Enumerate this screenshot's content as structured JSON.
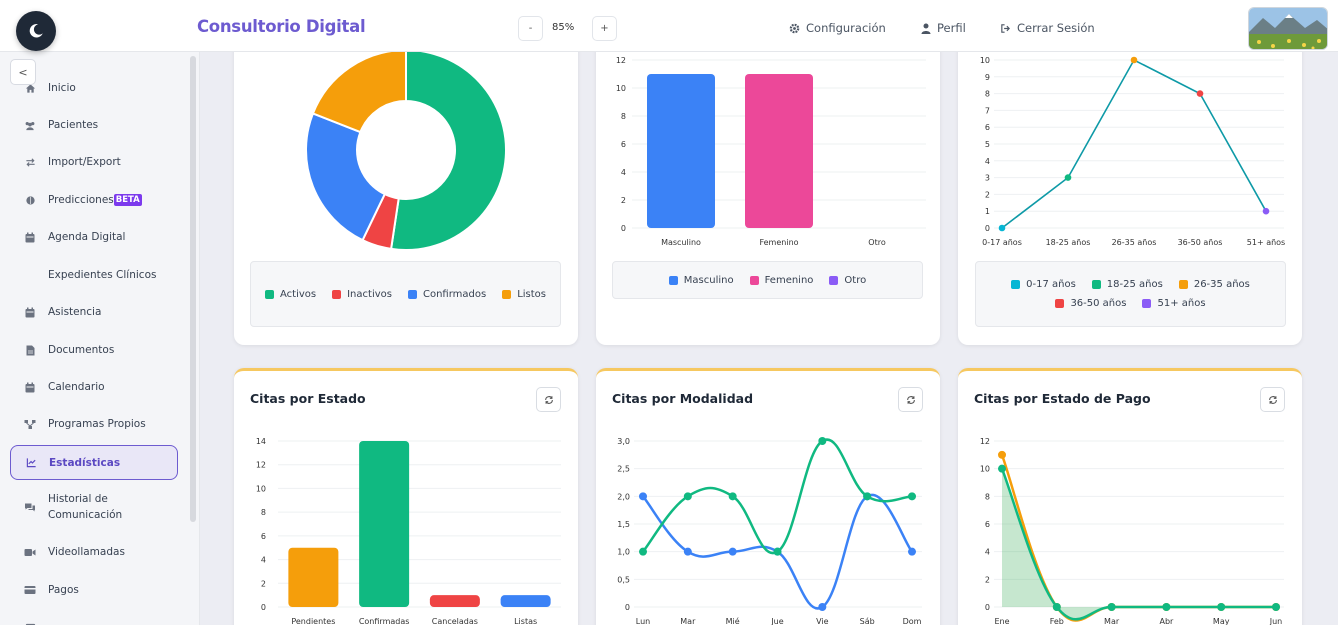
{
  "app": {
    "title": "Consultorio Digital",
    "zoom": {
      "minus": "-",
      "value": "85%",
      "plus": "+"
    },
    "nav": {
      "config": "Configuración",
      "profile": "Perfil",
      "logout": "Cerrar Sesión"
    },
    "collapse": "<"
  },
  "sidebar": {
    "items": [
      {
        "label": "Inicio",
        "icon": "home-icon"
      },
      {
        "label": "Pacientes",
        "icon": "users-icon"
      },
      {
        "label": "Import/Export",
        "icon": "exchange-icon"
      },
      {
        "label": "Predicciones",
        "icon": "brain-icon",
        "badge": "BETA"
      },
      {
        "label": "Agenda Digital",
        "icon": "calendar-icon"
      },
      {
        "label": "Expedientes Clínicos",
        "icon": ""
      },
      {
        "label": "Asistencia",
        "icon": "calendar-check-icon"
      },
      {
        "label": "Documentos",
        "icon": "file-icon"
      },
      {
        "label": "Calendario",
        "icon": "calendar-icon"
      },
      {
        "label": "Programas Propios",
        "icon": "sitemap-icon"
      },
      {
        "label": "Estadísticas",
        "icon": "chart-line-icon",
        "active": true
      },
      {
        "label": "Historial de Comunicación",
        "icon": "comments-icon"
      },
      {
        "label": "Videollamadas",
        "icon": "video-icon"
      },
      {
        "label": "Pagos",
        "icon": "credit-card-icon"
      }
    ]
  },
  "colors": {
    "brand": "#6d5bd0",
    "green": "#10b981",
    "red": "#ef4444",
    "blue": "#3b82f6",
    "orange": "#f59e0b",
    "pink": "#ec4899",
    "purple": "#8b5cf6",
    "teal": "#0891b2",
    "cyan": "#06b6d4"
  },
  "cards": {
    "c4": {
      "title": "Citas por Estado"
    },
    "c5": {
      "title": "Citas por Modalidad"
    },
    "c6": {
      "title": "Citas por Estado de Pago"
    }
  },
  "chart_data": [
    {
      "type": "pie",
      "categories": [
        "Activos",
        "Inactivos",
        "Confirmados",
        "Listos"
      ],
      "values": [
        11,
        1,
        5,
        4
      ],
      "colors": [
        "#10b981",
        "#ef4444",
        "#3b82f6",
        "#f59e0b"
      ],
      "legend": "bottom"
    },
    {
      "type": "bar",
      "categories": [
        "Masculino",
        "Femenino",
        "Otro"
      ],
      "values": [
        11,
        11,
        0
      ],
      "colors": [
        "#3b82f6",
        "#ec4899",
        "#8b5cf6"
      ],
      "ylim": [
        0,
        12
      ],
      "yticks": [
        0,
        2,
        4,
        6,
        8,
        10,
        12
      ],
      "legend": "bottom"
    },
    {
      "type": "line",
      "categories": [
        "0-17 años",
        "18-25 años",
        "26-35 años",
        "36-50 años",
        "51+ años"
      ],
      "values": [
        0,
        3,
        10,
        8,
        1
      ],
      "colors": [
        "#06b6d4",
        "#10b981",
        "#f59e0b",
        "#ef4444",
        "#8b5cf6"
      ],
      "ylim": [
        0,
        10
      ],
      "yticks": [
        0,
        1,
        2,
        3,
        4,
        5,
        6,
        7,
        8,
        9,
        10
      ],
      "legend": "bottom"
    },
    {
      "type": "bar",
      "title": "Citas por Estado",
      "categories": [
        "Pendientes",
        "Confirmadas",
        "Canceladas",
        "Listas"
      ],
      "values": [
        5,
        14,
        1,
        1
      ],
      "colors": [
        "#f59e0b",
        "#10b981",
        "#ef4444",
        "#3b82f6"
      ],
      "ylim": [
        0,
        14
      ],
      "yticks": [
        0,
        2,
        4,
        6,
        8,
        10,
        12,
        14
      ]
    },
    {
      "type": "line",
      "title": "Citas por Modalidad",
      "categories": [
        "Lun",
        "Mar",
        "Mié",
        "Jue",
        "Vie",
        "Sáb",
        "Dom"
      ],
      "series": [
        {
          "values": [
            2,
            1,
            1,
            1,
            0,
            2,
            1
          ],
          "color": "#3b82f6"
        },
        {
          "values": [
            1,
            2,
            2,
            1,
            3,
            2,
            2
          ],
          "color": "#10b981"
        }
      ],
      "ylim": [
        0,
        3
      ],
      "yticks": [
        "0",
        "0,5",
        "1,0",
        "1,5",
        "2,0",
        "2,5",
        "3,0"
      ]
    },
    {
      "type": "area",
      "title": "Citas por Estado de Pago",
      "categories": [
        "Ene",
        "Feb",
        "Mar",
        "Abr",
        "May",
        "Jun"
      ],
      "series": [
        {
          "values": [
            11,
            0,
            0,
            0,
            0,
            0
          ],
          "color": "#f59e0b"
        },
        {
          "values": [
            10,
            0,
            0,
            0,
            0,
            0
          ],
          "color": "#10b981"
        }
      ],
      "ylim": [
        0,
        12
      ],
      "yticks": [
        0,
        2,
        4,
        6,
        8,
        10,
        12
      ]
    }
  ]
}
